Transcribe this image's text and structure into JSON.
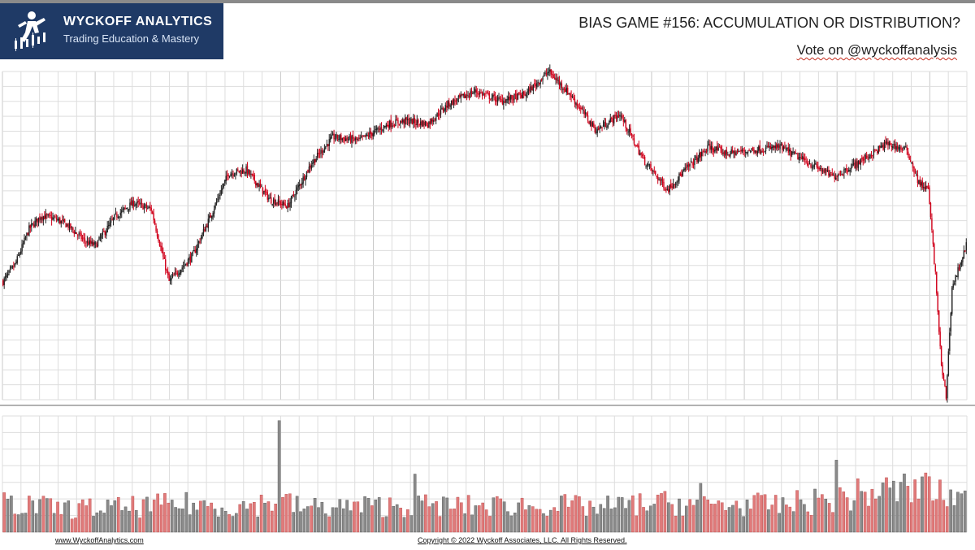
{
  "brand": {
    "name": "WYCKOFF ANALYTICS",
    "tagline": "Trading Education & Mastery",
    "color": "#1f3a66"
  },
  "header": {
    "title": "BIAS GAME #156: ACCUMULATION OR DISTRIBUTION?",
    "subtitle": "Vote on @wyckoffanalysis"
  },
  "footer": {
    "website": "www.WyckoffAnalytics.com",
    "copyright": "Copyright © 2022 Wyckoff Associates, LLC. All Rights Reserved."
  },
  "colors": {
    "up": "#222222",
    "down": "#d0021b",
    "volume_up": "#8a8a8a",
    "volume_down": "#e07a7a",
    "grid": "#dddddd"
  },
  "chart_data": {
    "type": "candlestick",
    "axes_labels_shown": false,
    "grid": true,
    "legend": "none",
    "price_domain": [
      0,
      100
    ],
    "volume_domain": [
      0,
      100
    ],
    "price_keypoints": [
      [
        0,
        36
      ],
      [
        10,
        41
      ],
      [
        22,
        52
      ],
      [
        32,
        56
      ],
      [
        45,
        55
      ],
      [
        55,
        53
      ],
      [
        70,
        48
      ],
      [
        78,
        47
      ],
      [
        95,
        56
      ],
      [
        110,
        60
      ],
      [
        125,
        58
      ],
      [
        140,
        36
      ],
      [
        160,
        44
      ],
      [
        175,
        56
      ],
      [
        190,
        69
      ],
      [
        205,
        70
      ],
      [
        225,
        61
      ],
      [
        240,
        59
      ],
      [
        260,
        72
      ],
      [
        278,
        80
      ],
      [
        300,
        79
      ],
      [
        325,
        84
      ],
      [
        340,
        85
      ],
      [
        358,
        84
      ],
      [
        375,
        90
      ],
      [
        398,
        94
      ],
      [
        420,
        91
      ],
      [
        440,
        93
      ],
      [
        460,
        100
      ],
      [
        478,
        93
      ],
      [
        500,
        82
      ],
      [
        520,
        87
      ],
      [
        540,
        73
      ],
      [
        560,
        64
      ],
      [
        575,
        70
      ],
      [
        595,
        77
      ],
      [
        610,
        75
      ],
      [
        630,
        76
      ],
      [
        655,
        77
      ],
      [
        675,
        73
      ],
      [
        700,
        68
      ],
      [
        720,
        72
      ],
      [
        745,
        78
      ],
      [
        762,
        76
      ],
      [
        772,
        66
      ],
      [
        780,
        64
      ],
      [
        786,
        38
      ],
      [
        791,
        10
      ],
      [
        795,
        1
      ],
      [
        800,
        34
      ],
      [
        812,
        47
      ]
    ],
    "volume_keypoints": [
      [
        0,
        25
      ],
      [
        50,
        20
      ],
      [
        100,
        21
      ],
      [
        150,
        24
      ],
      [
        200,
        22
      ],
      [
        235,
        27
      ],
      [
        250,
        21
      ],
      [
        300,
        22
      ],
      [
        350,
        23
      ],
      [
        400,
        22
      ],
      [
        450,
        24
      ],
      [
        500,
        21
      ],
      [
        550,
        25
      ],
      [
        600,
        24
      ],
      [
        650,
        23
      ],
      [
        700,
        28
      ],
      [
        730,
        34
      ],
      [
        760,
        37
      ],
      [
        790,
        34
      ],
      [
        812,
        27
      ]
    ],
    "volume_spikes": [
      [
        232,
        96
      ],
      [
        346,
        50
      ],
      [
        447,
        22
      ],
      [
        587,
        42
      ],
      [
        702,
        62
      ],
      [
        777,
        51
      ],
      [
        789,
        45
      ]
    ]
  }
}
